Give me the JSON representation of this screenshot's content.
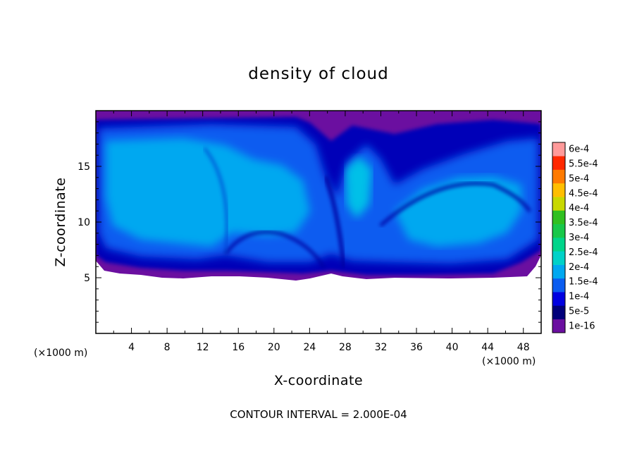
{
  "chart_data": {
    "type": "heatmap",
    "title": "density of cloud",
    "xlabel": "X-coordinate",
    "ylabel": "Z-coordinate",
    "x_unit": "(×1000 m)",
    "footer": "CONTOUR INTERVAL = 2.000E-04",
    "xlim": [
      0,
      50
    ],
    "ylim": [
      0,
      20
    ],
    "x_ticks": [
      "4",
      "8",
      "12",
      "16",
      "20",
      "24",
      "28",
      "32",
      "36",
      "40",
      "44",
      "48"
    ],
    "y_ticks": [
      "5",
      "10",
      "15"
    ],
    "colorbar": {
      "labels": [
        "1e-16",
        "5e-5",
        "1e-4",
        "1.5e-4",
        "2e-4",
        "2.5e-4",
        "3e-4",
        "3.5e-4",
        "4e-4",
        "4.5e-4",
        "5e-4",
        "5.5e-4",
        "6e-4"
      ],
      "colors": [
        "#6b0fa0",
        "#00007a",
        "#0000e0",
        "#0a5cf0",
        "#00a8f0",
        "#00d2c8",
        "#00d58a",
        "#18c84a",
        "#30c020",
        "#c8d800",
        "#ffbe00",
        "#ff7a00",
        "#ff2800",
        "#ff9a9a"
      ]
    },
    "cloud_layer": {
      "base_z": 5.2,
      "top_z": 19.5,
      "peak_value": "2e-4",
      "background_value": "1.5e-4"
    }
  }
}
